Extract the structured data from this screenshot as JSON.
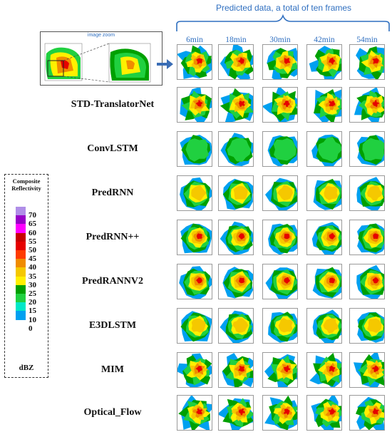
{
  "header": {
    "title": "Predicted data, a total of ten frames"
  },
  "zoom_inset": {
    "label": "image zoom"
  },
  "time_labels": [
    "6min",
    "18min",
    "30min",
    "42min",
    "54min"
  ],
  "models": [
    "STD-TranslatorNet",
    "ConvLSTM",
    "PredRNN",
    "PredRNN++",
    "PredRANNV2",
    "E3DLSTM",
    "MIM",
    "Optical_Flow"
  ],
  "legend": {
    "title_line1": "Composite",
    "title_line2": "Reflectivity",
    "unit": "dBZ",
    "ticks": [
      "70",
      "65",
      "60",
      "55",
      "50",
      "45",
      "40",
      "35",
      "30",
      "25",
      "20",
      "15",
      "10",
      "0"
    ],
    "colors": [
      "#b08ee8",
      "#9800c8",
      "#ff00ff",
      "#c80000",
      "#e60000",
      "#ff3b00",
      "#f08c00",
      "#f5c800",
      "#fff000",
      "#00a000",
      "#20d040",
      "#00e8c8",
      "#00a0f0",
      "#ffffff"
    ]
  },
  "palette": {
    "accent": "#2f6fc0",
    "arrow": "#3a6db5"
  }
}
